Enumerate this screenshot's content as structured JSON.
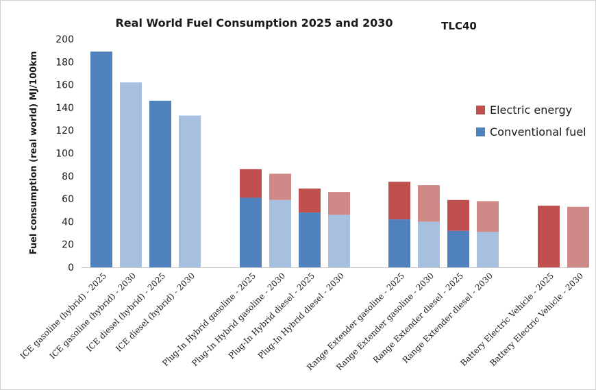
{
  "chart_data": {
    "type": "bar",
    "title": "Real World Fuel Consumption 2025 and 2030",
    "subtitle": "TLC40",
    "ylabel": "Fuel consumption (real world) MJ/100km",
    "xlabel": "",
    "ylim": [
      0,
      200
    ],
    "yticks": [
      0,
      20,
      40,
      60,
      80,
      100,
      120,
      140,
      160,
      180,
      200
    ],
    "grid": false,
    "stacked": true,
    "legend_position": "right",
    "legend": [
      {
        "name": "Electric energy",
        "color": "#c0504d"
      },
      {
        "name": "Conventional fuel",
        "color": "#4f81bd"
      }
    ],
    "groups": [
      [
        "ICE gasoline (hybrid) - 2025",
        "ICE gasoline (hybrid) - 2030",
        "ICE diesel (hybrid) - 2025",
        "ICE diesel (hybrid) - 2030"
      ],
      [
        "Plug-In Hybrid gasoline - 2025",
        "Plug-In Hybrid gasoline - 2030",
        "Plug-In Hybrid diesel - 2025",
        "Plug-In Hybrid diesel - 2030"
      ],
      [
        "Range Extender gasoline - 2025",
        "Range Extender gasoline - 2030",
        "Range Extender diesel - 2025",
        "Range Extender diesel - 2030"
      ],
      [
        "Battery Electric Vehicle - 2025",
        "Battery Electric Vehicle - 2030"
      ]
    ],
    "categories": [
      "ICE gasoline (hybrid) - 2025",
      "ICE gasoline (hybrid) - 2030",
      "ICE diesel (hybrid) - 2025",
      "ICE diesel (hybrid) - 2030",
      "Plug-In Hybrid gasoline - 2025",
      "Plug-In Hybrid gasoline - 2030",
      "Plug-In Hybrid diesel - 2025",
      "Plug-In Hybrid diesel - 2030",
      "Range Extender gasoline - 2025",
      "Range Extender gasoline - 2030",
      "Range Extender diesel - 2025",
      "Range Extender diesel - 2030",
      "Battery Electric Vehicle - 2025",
      "Battery Electric Vehicle - 2030"
    ],
    "series": [
      {
        "name": "Conventional fuel",
        "values": [
          189,
          162,
          146,
          133,
          61,
          59,
          48,
          46,
          42,
          40,
          32,
          31,
          0,
          0
        ],
        "colors_2025": "#4f81bd",
        "colors_2030": "#a7c0df"
      },
      {
        "name": "Electric energy",
        "values": [
          0,
          0,
          0,
          0,
          25,
          23,
          21,
          20,
          33,
          32,
          27,
          27,
          54,
          53
        ],
        "colors_2025": "#c0504d",
        "colors_2030": "#cf8a88"
      }
    ]
  }
}
